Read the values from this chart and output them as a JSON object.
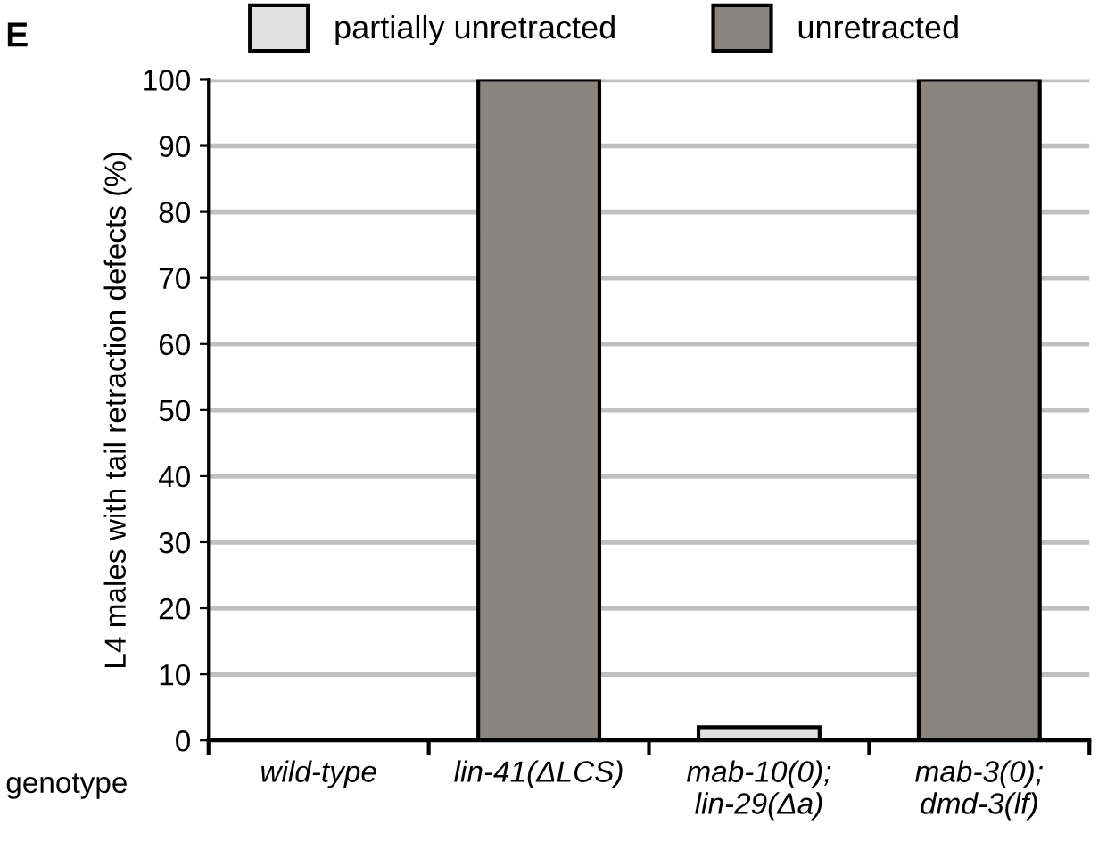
{
  "chart_data": {
    "type": "bar",
    "stacked": true,
    "xlabel": "genotype",
    "ylabel": "L4 males with tail retraction defects (%)",
    "annotations": [
      "E"
    ],
    "categories": [
      "wild-type",
      "lin-41(ΔLCS)",
      "mab-10(0);\nlin-29(Δa)",
      "mab-3(0);\ndmd-3(lf)"
    ],
    "series": [
      {
        "name": "partially unretracted",
        "color": "#e0e0e0",
        "values": [
          0,
          0,
          2,
          0
        ]
      },
      {
        "name": "unretracted",
        "color": "#8a847f",
        "values": [
          0,
          100,
          0,
          100
        ]
      }
    ],
    "ylim": [
      0,
      100
    ],
    "yticks": [
      0,
      10,
      20,
      30,
      40,
      50,
      60,
      70,
      80,
      90,
      100
    ],
    "grid": "y",
    "legend": "top"
  }
}
